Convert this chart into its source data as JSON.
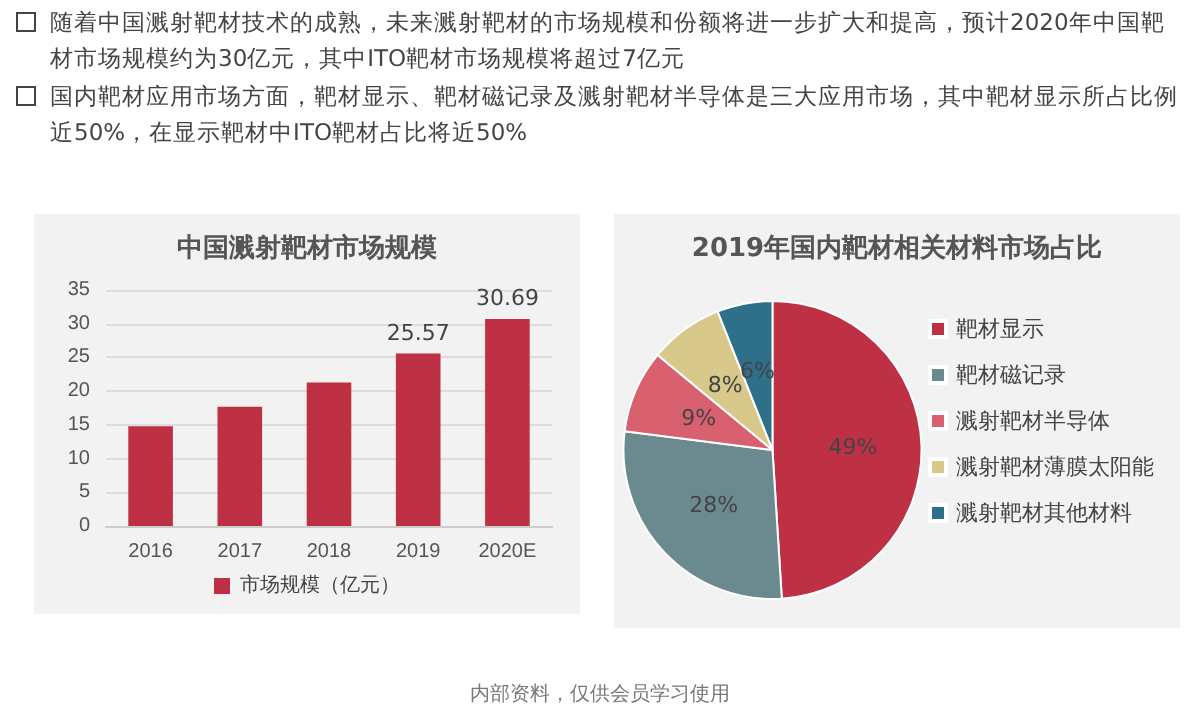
{
  "chart_data": [
    {
      "type": "other",
      "annotations": [
        "随着中国溅射靶材技术的成熟，未来溅射靶材的市场规模和份额将进一步扩大和提高，预计2020年中国靶材市场规模约为30亿元，其中ITO靶材市场规模将超过7亿元",
        "国内靶材应用市场方面，靶材显示、靶材磁记录及溅射靶材半导体是三大应用市场，其中靶材显示所占比例近50%，在显示靶材中ITO靶材占比将近50%",
        "内部资料，仅供会员学习使用"
      ]
    },
    {
      "type": "bar",
      "title": "中国溅射靶材市场规模",
      "categories": [
        "2016",
        "2017",
        "2018",
        "2019",
        "2020E"
      ],
      "series": [
        {
          "name": "市场规模（亿元）",
          "color": "#be3144",
          "values": [
            14.8,
            17.7,
            21.3,
            25.57,
            30.69
          ],
          "value_labels": [
            null,
            null,
            null,
            "25.57",
            "30.69"
          ]
        }
      ],
      "ylim": [
        0,
        35
      ],
      "yticks": [
        0,
        5,
        10,
        15,
        20,
        25,
        30,
        35
      ],
      "grid": "y",
      "legend": "bottom"
    },
    {
      "type": "pie",
      "title": "2019年国内靶材相关材料市场占比",
      "categories": [
        "靶材显示",
        "靶材磁记录",
        "溅射靶材半导体",
        "溅射靶材薄膜太阳能",
        "溅射靶材其他材料"
      ],
      "values": [
        49,
        28,
        9,
        8,
        6
      ],
      "value_labels": [
        "49%",
        "28%",
        "9%",
        "8%",
        "6%"
      ],
      "colors": [
        "#be3144",
        "#6b8a90",
        "#d9606e",
        "#d8c98a",
        "#2e6f8a"
      ],
      "legend": "right"
    }
  ]
}
